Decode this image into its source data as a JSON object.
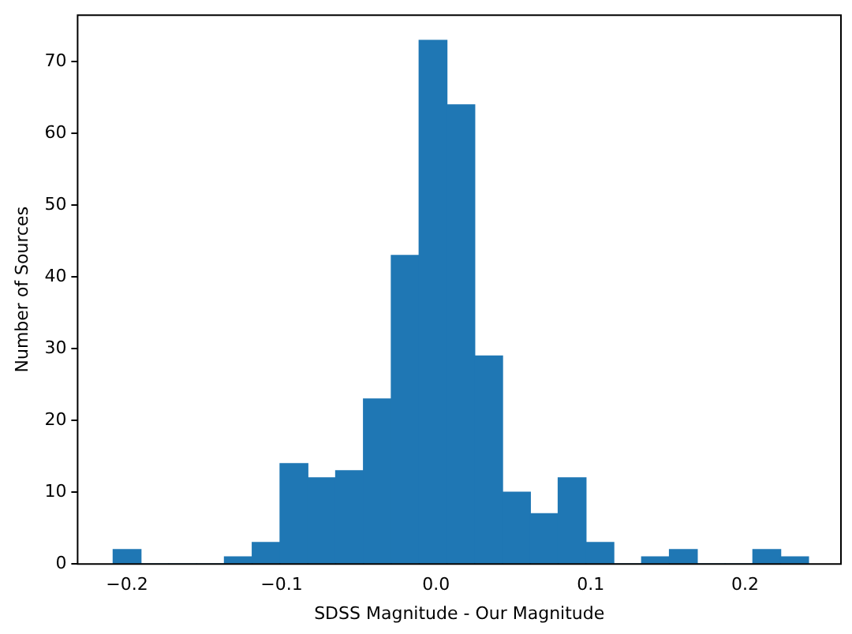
{
  "chart_data": {
    "type": "histogram",
    "xlabel": "SDSS Magnitude - Our Magnitude",
    "ylabel": "Number of Sources",
    "bins": [
      -0.209,
      -0.191,
      -0.173,
      -0.155,
      -0.137,
      -0.119,
      -0.101,
      -0.083,
      -0.065,
      -0.047,
      -0.029,
      -0.011,
      0.007,
      0.025,
      0.043,
      0.061,
      0.079,
      0.097,
      0.115,
      0.133,
      0.151,
      0.169,
      0.187,
      0.205,
      0.223,
      0.241
    ],
    "values": [
      2,
      0,
      0,
      0,
      1,
      3,
      14,
      12,
      13,
      23,
      43,
      73,
      64,
      29,
      10,
      7,
      12,
      3,
      0,
      1,
      2,
      0,
      0,
      2,
      1
    ],
    "color": "#1f77b4",
    "xlim": [
      -0.232,
      0.262
    ],
    "xticks": [
      {
        "value": -0.2,
        "label": "−0.2"
      },
      {
        "value": -0.1,
        "label": "−0.1"
      },
      {
        "value": 0,
        "label": "0.0"
      },
      0.1,
      0.2
    ],
    "ylim": [
      0,
      76.5
    ],
    "yticks": [
      0,
      10,
      20,
      30,
      40,
      50,
      60,
      70
    ],
    "grid": false,
    "legend": false
  }
}
